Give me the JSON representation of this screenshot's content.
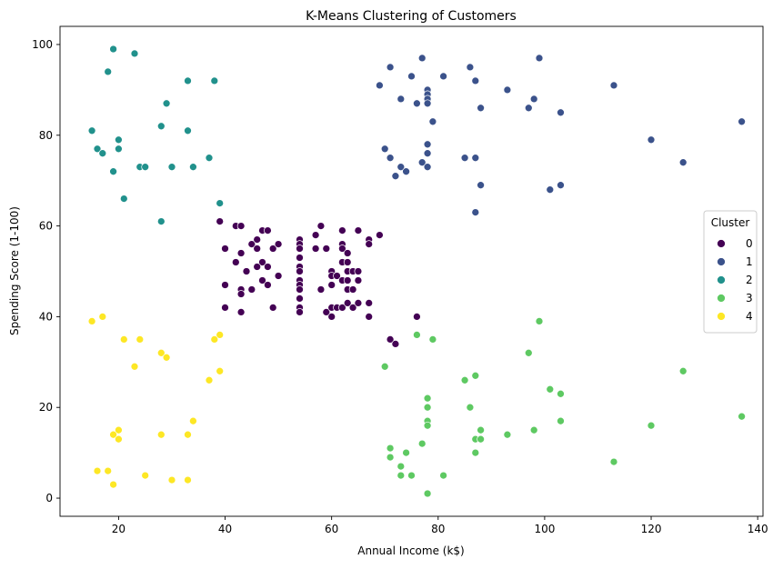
{
  "chart_data": {
    "type": "scatter",
    "title": "K-Means Clustering of Customers",
    "xlabel": "Annual Income (k$)",
    "ylabel": "Spending Score (1-100)",
    "xlim": [
      9,
      141
    ],
    "ylim": [
      -4,
      104
    ],
    "xticks": [
      20,
      40,
      60,
      80,
      100,
      120,
      140
    ],
    "yticks": [
      0,
      20,
      40,
      60,
      80,
      100
    ],
    "grid": false,
    "legend": {
      "title": "Cluster",
      "placement": "right"
    },
    "series": [
      {
        "name": "0",
        "color": "#440154",
        "points": [
          [
            39,
            61
          ],
          [
            42,
            60
          ],
          [
            43,
            60
          ],
          [
            40,
            55
          ],
          [
            44,
            50
          ],
          [
            42,
            52
          ],
          [
            45,
            56
          ],
          [
            46,
            55
          ],
          [
            43,
            54
          ],
          [
            47,
            59
          ],
          [
            48,
            59
          ],
          [
            46,
            57
          ],
          [
            47,
            52
          ],
          [
            48,
            51
          ],
          [
            49,
            55
          ],
          [
            50,
            56
          ],
          [
            50,
            49
          ],
          [
            46,
            51
          ],
          [
            43,
            46
          ],
          [
            40,
            47
          ],
          [
            43,
            45
          ],
          [
            45,
            46
          ],
          [
            47,
            48
          ],
          [
            48,
            47
          ],
          [
            40,
            42
          ],
          [
            43,
            41
          ],
          [
            49,
            42
          ],
          [
            54,
            57
          ],
          [
            54,
            56
          ],
          [
            54,
            55
          ],
          [
            54,
            53
          ],
          [
            54,
            51
          ],
          [
            54,
            50
          ],
          [
            54,
            48
          ],
          [
            54,
            47
          ],
          [
            54,
            46
          ],
          [
            54,
            44
          ],
          [
            54,
            42
          ],
          [
            54,
            41
          ],
          [
            57,
            58
          ],
          [
            58,
            60
          ],
          [
            57,
            55
          ],
          [
            59,
            55
          ],
          [
            58,
            46
          ],
          [
            59,
            41
          ],
          [
            60,
            42
          ],
          [
            60,
            40
          ],
          [
            60,
            50
          ],
          [
            60,
            49
          ],
          [
            60,
            47
          ],
          [
            61,
            49
          ],
          [
            61,
            42
          ],
          [
            62,
            59
          ],
          [
            62,
            56
          ],
          [
            62,
            55
          ],
          [
            62,
            52
          ],
          [
            62,
            48
          ],
          [
            62,
            42
          ],
          [
            63,
            54
          ],
          [
            63,
            52
          ],
          [
            63,
            50
          ],
          [
            63,
            48
          ],
          [
            63,
            46
          ],
          [
            63,
            43
          ],
          [
            64,
            50
          ],
          [
            64,
            46
          ],
          [
            64,
            42
          ],
          [
            65,
            59
          ],
          [
            65,
            50
          ],
          [
            65,
            48
          ],
          [
            65,
            43
          ],
          [
            67,
            57
          ],
          [
            67,
            56
          ],
          [
            67,
            43
          ],
          [
            67,
            40
          ],
          [
            69,
            58
          ],
          [
            71,
            35
          ],
          [
            72,
            34
          ],
          [
            76,
            40
          ]
        ]
      },
      {
        "name": "1",
        "color": "#3b528b",
        "points": [
          [
            69,
            91
          ],
          [
            71,
            95
          ],
          [
            73,
            88
          ],
          [
            75,
            93
          ],
          [
            76,
            87
          ],
          [
            77,
            97
          ],
          [
            78,
            90
          ],
          [
            78,
            89
          ],
          [
            78,
            88
          ],
          [
            78,
            87
          ],
          [
            79,
            83
          ],
          [
            81,
            93
          ],
          [
            86,
            95
          ],
          [
            87,
            92
          ],
          [
            88,
            86
          ],
          [
            93,
            90
          ],
          [
            97,
            86
          ],
          [
            98,
            88
          ],
          [
            99,
            97
          ],
          [
            103,
            85
          ],
          [
            113,
            91
          ],
          [
            137,
            83
          ],
          [
            70,
            77
          ],
          [
            71,
            75
          ],
          [
            72,
            71
          ],
          [
            73,
            73
          ],
          [
            74,
            72
          ],
          [
            77,
            74
          ],
          [
            78,
            78
          ],
          [
            78,
            76
          ],
          [
            78,
            73
          ],
          [
            85,
            75
          ],
          [
            87,
            75
          ],
          [
            88,
            69
          ],
          [
            87,
            63
          ],
          [
            101,
            68
          ],
          [
            103,
            69
          ],
          [
            120,
            79
          ],
          [
            126,
            74
          ]
        ]
      },
      {
        "name": "2",
        "color": "#21918c",
        "points": [
          [
            19,
            99
          ],
          [
            23,
            98
          ],
          [
            18,
            94
          ],
          [
            33,
            92
          ],
          [
            38,
            92
          ],
          [
            29,
            87
          ],
          [
            28,
            82
          ],
          [
            15,
            81
          ],
          [
            33,
            81
          ],
          [
            20,
            79
          ],
          [
            16,
            77
          ],
          [
            20,
            77
          ],
          [
            17,
            76
          ],
          [
            37,
            75
          ],
          [
            24,
            73
          ],
          [
            25,
            73
          ],
          [
            30,
            73
          ],
          [
            34,
            73
          ],
          [
            19,
            72
          ],
          [
            21,
            66
          ],
          [
            39,
            65
          ],
          [
            28,
            61
          ]
        ]
      },
      {
        "name": "3",
        "color": "#5ec962",
        "points": [
          [
            99,
            39
          ],
          [
            76,
            36
          ],
          [
            79,
            35
          ],
          [
            97,
            32
          ],
          [
            70,
            29
          ],
          [
            126,
            28
          ],
          [
            87,
            27
          ],
          [
            85,
            26
          ],
          [
            101,
            24
          ],
          [
            103,
            23
          ],
          [
            78,
            22
          ],
          [
            86,
            20
          ],
          [
            78,
            20
          ],
          [
            137,
            18
          ],
          [
            78,
            17
          ],
          [
            103,
            17
          ],
          [
            78,
            16
          ],
          [
            120,
            16
          ],
          [
            98,
            15
          ],
          [
            88,
            15
          ],
          [
            87,
            13
          ],
          [
            88,
            13
          ],
          [
            93,
            14
          ],
          [
            77,
            12
          ],
          [
            71,
            11
          ],
          [
            74,
            10
          ],
          [
            87,
            10
          ],
          [
            71,
            9
          ],
          [
            113,
            8
          ],
          [
            73,
            7
          ],
          [
            73,
            5
          ],
          [
            75,
            5
          ],
          [
            81,
            5
          ],
          [
            78,
            1
          ]
        ]
      },
      {
        "name": "4",
        "color": "#fde725",
        "points": [
          [
            17,
            40
          ],
          [
            15,
            39
          ],
          [
            39,
            36
          ],
          [
            21,
            35
          ],
          [
            24,
            35
          ],
          [
            38,
            35
          ],
          [
            28,
            32
          ],
          [
            29,
            31
          ],
          [
            23,
            29
          ],
          [
            39,
            28
          ],
          [
            37,
            26
          ],
          [
            34,
            17
          ],
          [
            20,
            15
          ],
          [
            19,
            14
          ],
          [
            28,
            14
          ],
          [
            33,
            14
          ],
          [
            20,
            13
          ],
          [
            16,
            6
          ],
          [
            18,
            6
          ],
          [
            25,
            5
          ],
          [
            30,
            4
          ],
          [
            33,
            4
          ],
          [
            19,
            3
          ]
        ]
      }
    ]
  }
}
